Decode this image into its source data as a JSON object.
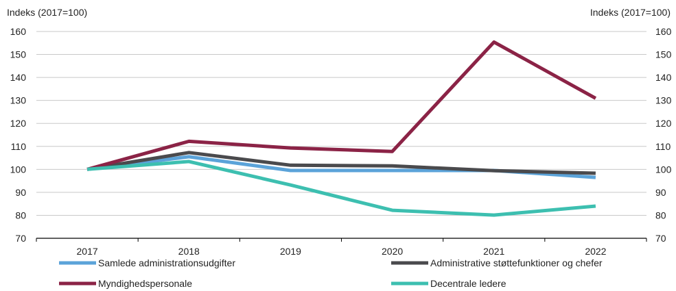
{
  "chart_data": {
    "type": "line",
    "ylabel_left": "Indeks (2017=100)",
    "ylabel_right": "Indeks (2017=100)",
    "ylim": [
      70,
      160
    ],
    "yticks": [
      70,
      80,
      90,
      100,
      110,
      120,
      130,
      140,
      150,
      160
    ],
    "categories": [
      "2017",
      "2018",
      "2019",
      "2020",
      "2021",
      "2022"
    ],
    "grid": "horizontal",
    "legend_position": "bottom",
    "series": [
      {
        "name": "Samlede administrationsudgifter",
        "color": "#5ba3d9",
        "values": [
          100,
          105.5,
          99.5,
          99.5,
          99.5,
          96.5
        ]
      },
      {
        "name": "Administrative støttefunktioner og chefer",
        "color": "#4a4a4d",
        "values": [
          100,
          107.3,
          101.8,
          101.5,
          99.4,
          98.3
        ]
      },
      {
        "name": "Myndighedspersonale",
        "color": "#8b2346",
        "values": [
          100,
          112.2,
          109.3,
          107.8,
          155.4,
          130.9
        ]
      },
      {
        "name": "Decentrale ledere",
        "color": "#3dbfb0",
        "values": [
          100,
          103.4,
          93.2,
          82.2,
          80.1,
          84.0
        ]
      }
    ]
  }
}
